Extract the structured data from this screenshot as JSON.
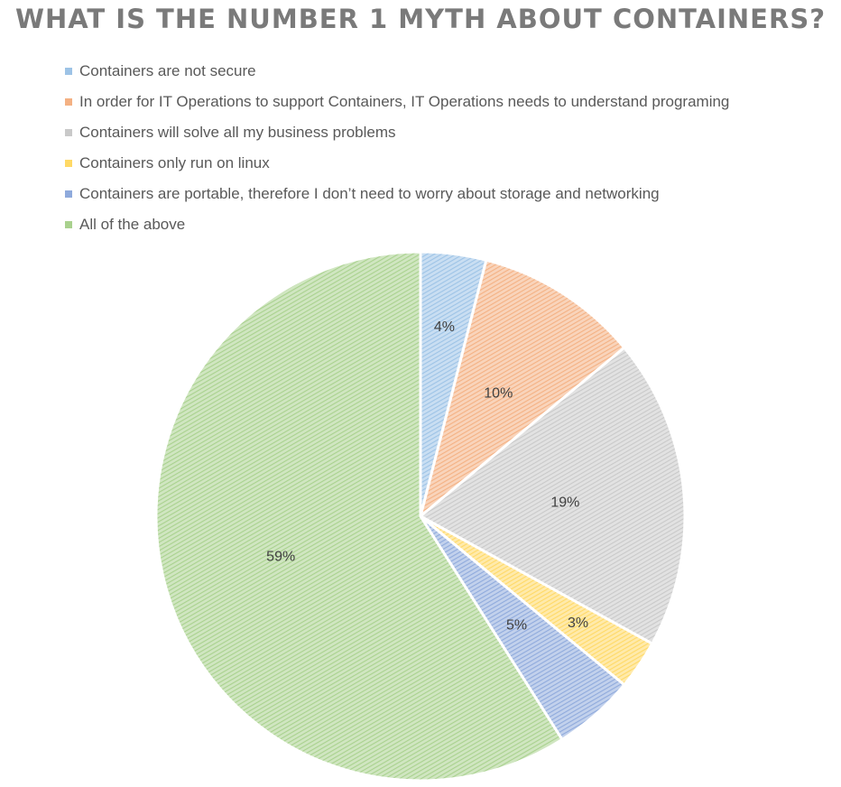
{
  "chart_data": {
    "type": "pie",
    "title": "WHAT IS THE NUMBER 1 MYTH ABOUT CONTAINERS?",
    "legend_position": "top-left",
    "slices": [
      {
        "label": "Containers are not secure",
        "value": 4,
        "display": "4%",
        "color": "#9dc3e6"
      },
      {
        "label": "In order for IT Operations to support Containers, IT Operations needs to understand programing",
        "value": 10,
        "display": "10%",
        "color": "#f4b183"
      },
      {
        "label": "Containers will solve all my business problems",
        "value": 19,
        "display": "19%",
        "color": "#c9c9c9"
      },
      {
        "label": "Containers only run on linux",
        "value": 3,
        "display": "3%",
        "color": "#ffd966"
      },
      {
        "label": "Containers are portable, therefore I don’t need to worry about storage and networking",
        "value": 5,
        "display": "5%",
        "color": "#8faadc"
      },
      {
        "label": "All of the above",
        "value": 59,
        "display": "59%",
        "color": "#a9d18e"
      }
    ]
  }
}
